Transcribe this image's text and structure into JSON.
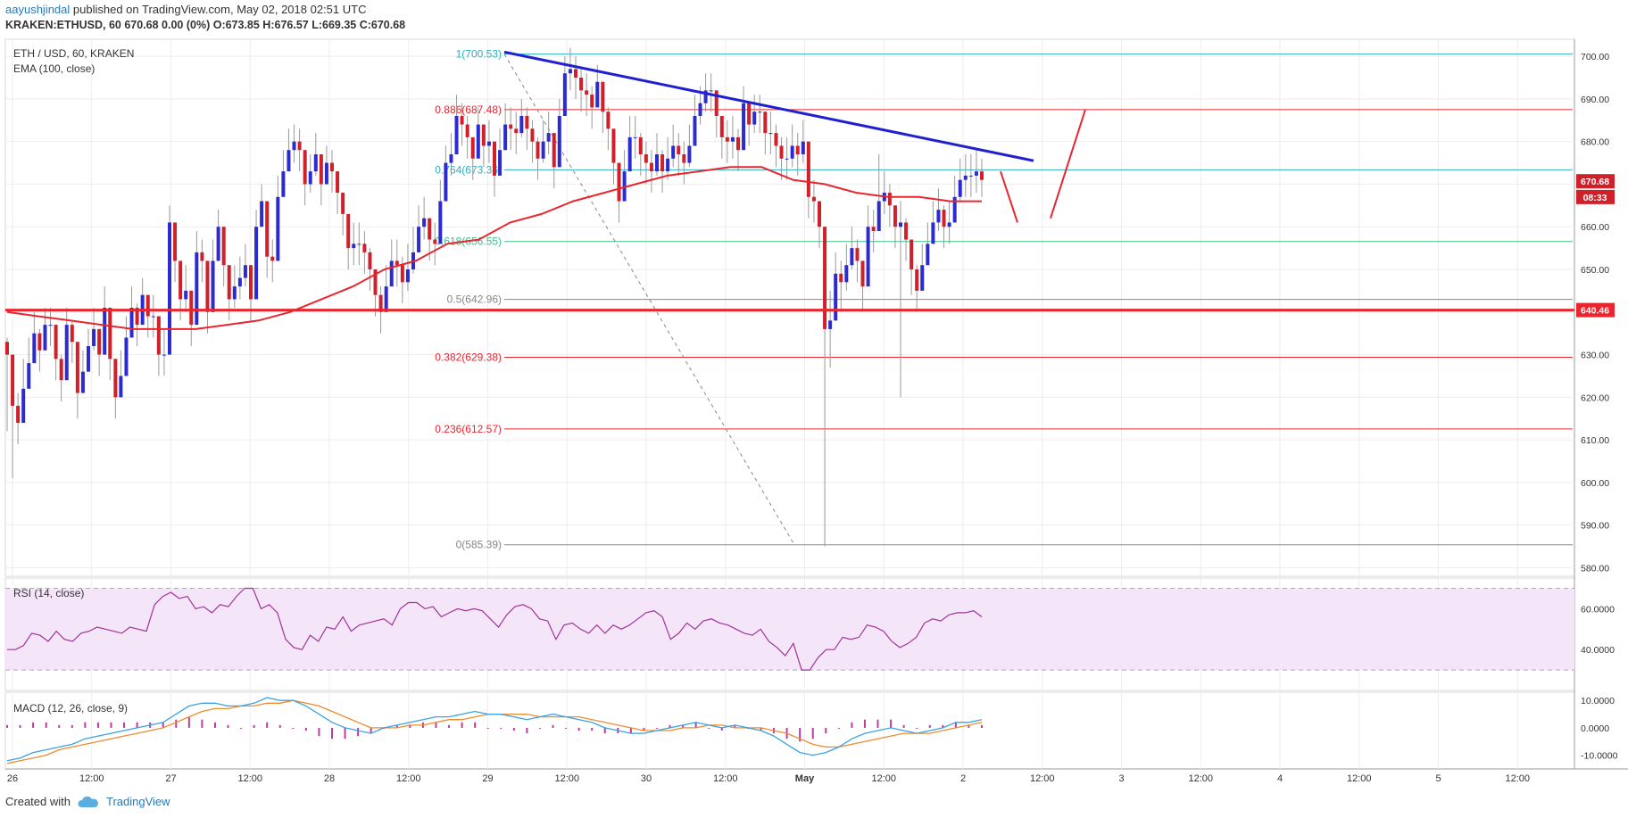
{
  "header": {
    "user": "aayushjindal",
    "published": " published on TradingView.com, May 02, 2018 02:51 UTC",
    "ticker_line": "KRAKEN:ETHUSD, 60  670.68 0.00 (0%) O:673.85 H:676.57 L:669.35 C:670.68"
  },
  "main_pane": {
    "symbol_label": "ETH / USD, 60, KRAKEN",
    "indicator_label": "EMA (100, close)"
  },
  "rsi_pane": {
    "label": "RSI (14, close)"
  },
  "macd_pane": {
    "label": "MACD (12, 26, close, 9)"
  },
  "footer": {
    "created_with": "Created with",
    "brand": "TradingView"
  },
  "colors": {
    "bull": "#2b2bd0",
    "bear": "#d0202a",
    "ema": "#e8262f",
    "trendline": "#2020d0",
    "support": "#e8262f",
    "rsi": "#a0339a",
    "rsi_band": "#f4e6f8",
    "macd": "#3aa3e3",
    "signal": "#f08a2e",
    "hist": "#c03ba0",
    "fib_cyan": "#2bb0c2",
    "fib_green": "#3cc08a",
    "fib_red": "#e8262f",
    "fib_gray": "#888888"
  },
  "chart_data": [
    {
      "type": "candlestick",
      "title": "ETH / USD, 60, KRAKEN",
      "ylim": [
        578,
        704
      ],
      "y_ticks": [
        "700.00",
        "690.00",
        "680.00",
        "670.00",
        "660.00",
        "650.00",
        "640.00",
        "630.00",
        "620.00",
        "610.00",
        "600.00",
        "590.00",
        "580.00"
      ],
      "x_ticks": [
        "26",
        "12:00",
        "27",
        "12:00",
        "28",
        "12:00",
        "29",
        "12:00",
        "30",
        "12:00",
        "May",
        "12:00",
        "2",
        "12:00",
        "3",
        "12:00",
        "4",
        "12:00",
        "5",
        "12:00"
      ],
      "last_price": "670.68",
      "countdown": "08:33",
      "support_level": "640.46",
      "fib_levels": [
        {
          "label": "1(700.53)",
          "value": 700.53,
          "color": "cyan"
        },
        {
          "label": "0.886(687.48)",
          "value": 687.48,
          "color": "red"
        },
        {
          "label": "0.764(673.36)",
          "value": 673.36,
          "color": "cyan"
        },
        {
          "label": "0.618(656.55)",
          "value": 656.55,
          "color": "green"
        },
        {
          "label": "0.5(642.96)",
          "value": 642.96,
          "color": "gray"
        },
        {
          "label": "0.382(629.38)",
          "value": 629.38,
          "color": "red"
        },
        {
          "label": "0.236(612.57)",
          "value": 612.57,
          "color": "red"
        },
        {
          "label": "0(585.39)",
          "value": 585.39,
          "color": "gray"
        }
      ],
      "trendline": {
        "from_price": 701,
        "to_price": 675.5
      },
      "ema_points": [
        640,
        639,
        638,
        637,
        636,
        636,
        636,
        637,
        638,
        640,
        643,
        646,
        650,
        652,
        656,
        657,
        661,
        663,
        666,
        668,
        670,
        672,
        673,
        674,
        674,
        671,
        670,
        668,
        667,
        667,
        666,
        666
      ],
      "closes": [
        630,
        618,
        614,
        622,
        628,
        635,
        631,
        637,
        637,
        629,
        624,
        637,
        633,
        621,
        626,
        632,
        636,
        630,
        641,
        629,
        620,
        625,
        634,
        641,
        637,
        644,
        639,
        639,
        630,
        630,
        661,
        652,
        643,
        645,
        637,
        654,
        652,
        640,
        652,
        660,
        651,
        643,
        646,
        648,
        651,
        643,
        660,
        666,
        653,
        652,
        667,
        673,
        678,
        680,
        678,
        670,
        673,
        677,
        670,
        675,
        673,
        668,
        663,
        655,
        656,
        656,
        654,
        650,
        644,
        640,
        646,
        652,
        651,
        647,
        650,
        654,
        660,
        662,
        657,
        656,
        666,
        675,
        677,
        686,
        684,
        681,
        676,
        684,
        679,
        680,
        672,
        678,
        684,
        683,
        682,
        686,
        683,
        680,
        676,
        680,
        682,
        674,
        686,
        696,
        697,
        695,
        692,
        691,
        688,
        694,
        687,
        683,
        675,
        666,
        673,
        681,
        681,
        677,
        675,
        673,
        677,
        673,
        676,
        679,
        677,
        675,
        679,
        686,
        689,
        692,
        692,
        686,
        681,
        680,
        681,
        678,
        689,
        684,
        687,
        687,
        682,
        682,
        679,
        676,
        676,
        679,
        677,
        680,
        667,
        666,
        660,
        636,
        638,
        649,
        647,
        651,
        655,
        652,
        646,
        660,
        659,
        666,
        668,
        665,
        660,
        661,
        657,
        650,
        645,
        651,
        656,
        661,
        664,
        660,
        661,
        667,
        671,
        672,
        672,
        673,
        671
      ],
      "highs": [
        634,
        622,
        621,
        629,
        634,
        640,
        636,
        641,
        641,
        634,
        630,
        641,
        638,
        628,
        631,
        636,
        641,
        635,
        646,
        635,
        627,
        631,
        639,
        646,
        642,
        648,
        644,
        644,
        636,
        636,
        665,
        657,
        649,
        651,
        643,
        659,
        657,
        646,
        657,
        664,
        656,
        649,
        651,
        653,
        656,
        648,
        664,
        670,
        658,
        657,
        672,
        678,
        683,
        684,
        683,
        675,
        677,
        682,
        675,
        679,
        678,
        673,
        668,
        661,
        661,
        661,
        659,
        655,
        650,
        646,
        651,
        657,
        657,
        653,
        656,
        660,
        665,
        667,
        662,
        661,
        671,
        679,
        682,
        691,
        689,
        686,
        681,
        688,
        684,
        685,
        677,
        683,
        689,
        688,
        687,
        690,
        688,
        685,
        681,
        685,
        687,
        679,
        690,
        700,
        702,
        700,
        697,
        696,
        693,
        698,
        692,
        688,
        681,
        672,
        678,
        686,
        686,
        682,
        680,
        678,
        682,
        678,
        681,
        684,
        682,
        680,
        684,
        691,
        693,
        696,
        696,
        691,
        686,
        685,
        686,
        683,
        693,
        689,
        691,
        691,
        687,
        687,
        684,
        681,
        681,
        684,
        682,
        685,
        672,
        671,
        666,
        641,
        645,
        654,
        652,
        656,
        660,
        657,
        651,
        665,
        664,
        677,
        673,
        670,
        665,
        666,
        662,
        656,
        651,
        656,
        661,
        666,
        669,
        665,
        666,
        672,
        676,
        677,
        677,
        678,
        676
      ],
      "lows": [
        612,
        601,
        609,
        617,
        623,
        630,
        626,
        632,
        632,
        624,
        619,
        632,
        628,
        615,
        621,
        627,
        631,
        625,
        636,
        624,
        615,
        620,
        629,
        636,
        632,
        639,
        634,
        634,
        625,
        625,
        656,
        647,
        638,
        640,
        632,
        649,
        647,
        635,
        647,
        655,
        646,
        638,
        641,
        643,
        646,
        638,
        655,
        661,
        648,
        647,
        662,
        668,
        673,
        675,
        673,
        665,
        668,
        672,
        665,
        670,
        668,
        663,
        658,
        650,
        651,
        651,
        649,
        645,
        639,
        635,
        641,
        647,
        646,
        642,
        645,
        649,
        655,
        657,
        652,
        651,
        661,
        670,
        672,
        681,
        679,
        676,
        671,
        679,
        674,
        675,
        667,
        673,
        679,
        678,
        677,
        681,
        678,
        675,
        671,
        675,
        677,
        669,
        681,
        691,
        692,
        690,
        687,
        686,
        683,
        689,
        682,
        678,
        670,
        661,
        668,
        676,
        676,
        672,
        670,
        668,
        672,
        668,
        671,
        674,
        672,
        670,
        674,
        681,
        684,
        687,
        687,
        681,
        676,
        675,
        676,
        673,
        684,
        679,
        682,
        682,
        677,
        677,
        674,
        671,
        671,
        674,
        672,
        675,
        662,
        661,
        655,
        585,
        627,
        640,
        640,
        645,
        650,
        647,
        640,
        655,
        654,
        660,
        663,
        660,
        655,
        620,
        652,
        644,
        640,
        646,
        651,
        656,
        659,
        655,
        656,
        662,
        666,
        667,
        667,
        668,
        667
      ]
    },
    {
      "type": "line",
      "title": "RSI (14, close)",
      "ylim": [
        20,
        75
      ],
      "y_ticks": [
        "60.0000",
        "40.0000"
      ],
      "bands": [
        30,
        70
      ],
      "values": [
        40,
        40,
        42,
        48,
        47,
        44,
        49,
        45,
        44,
        48,
        49,
        51,
        50,
        49,
        48,
        51,
        50,
        49,
        62,
        66,
        68,
        65,
        66,
        60,
        61,
        58,
        62,
        61,
        66,
        70,
        70,
        60,
        62,
        58,
        45,
        41,
        40,
        47,
        44,
        51,
        50,
        56,
        49,
        52,
        53,
        54,
        55,
        52,
        60,
        63,
        63,
        60,
        61,
        56,
        58,
        60,
        59,
        60,
        59,
        55,
        51,
        57,
        61,
        62,
        60,
        55,
        54,
        45,
        52,
        53,
        50,
        48,
        52,
        48,
        52,
        50,
        52,
        55,
        58,
        59,
        56,
        45,
        48,
        53,
        50,
        54,
        55,
        53,
        52,
        50,
        48,
        47,
        50,
        44,
        41,
        37,
        43,
        30,
        30,
        36,
        40,
        40,
        46,
        45,
        46,
        52,
        51,
        49,
        44,
        41,
        43,
        46,
        53,
        55,
        54,
        57,
        58,
        58,
        59,
        56
      ]
    },
    {
      "type": "line",
      "title": "MACD (12, 26, close, 9)",
      "ylim": [
        -15,
        13
      ],
      "y_ticks": [
        "10.0000",
        "0.0000",
        "-10.0000"
      ],
      "macd": [
        -12,
        -11,
        -9,
        -8,
        -7,
        -6,
        -4,
        -3,
        -2,
        -1,
        0,
        1,
        2,
        5,
        8,
        9,
        9,
        8,
        8,
        9,
        11,
        10,
        10,
        8,
        5,
        2,
        0,
        -1,
        -2,
        0,
        1,
        2,
        3,
        4,
        4,
        5,
        6,
        5,
        5,
        4,
        3,
        4,
        5,
        4,
        3,
        2,
        0,
        -1,
        -2,
        -2,
        -1,
        0,
        1,
        2,
        1,
        0,
        1,
        0,
        -1,
        -3,
        -6,
        -9,
        -10,
        -9,
        -7,
        -4,
        -2,
        -1,
        0,
        -1,
        -2,
        -1,
        0,
        2,
        2,
        3
      ],
      "signal": [
        -13,
        -12,
        -11,
        -10,
        -8,
        -7,
        -6,
        -5,
        -4,
        -3,
        -2,
        -1,
        0,
        2,
        4,
        6,
        7,
        7,
        8,
        8,
        9,
        9,
        10,
        9,
        8,
        6,
        4,
        2,
        0,
        0,
        0,
        1,
        1,
        2,
        3,
        3,
        4,
        5,
        5,
        5,
        5,
        4,
        4,
        4,
        4,
        3,
        2,
        1,
        0,
        -1,
        -1,
        -1,
        0,
        0,
        1,
        1,
        0,
        0,
        0,
        -1,
        -2,
        -4,
        -6,
        -7,
        -7,
        -6,
        -5,
        -4,
        -3,
        -2,
        -2,
        -2,
        -1,
        0,
        1,
        2
      ],
      "histogram": [
        1,
        1,
        2,
        2,
        1,
        1,
        2,
        2,
        2,
        2,
        2,
        2,
        2,
        3,
        4,
        3,
        2,
        1,
        0,
        1,
        2,
        1,
        0,
        -1,
        -3,
        -4,
        -4,
        -3,
        -2,
        0,
        1,
        1,
        2,
        2,
        1,
        2,
        2,
        0,
        0,
        -1,
        -2,
        0,
        1,
        0,
        -1,
        -1,
        -2,
        -2,
        -2,
        -1,
        0,
        1,
        1,
        2,
        0,
        -1,
        1,
        0,
        -1,
        -2,
        -4,
        -5,
        -4,
        -2,
        0,
        2,
        3,
        3,
        3,
        1,
        0,
        1,
        1,
        2,
        1,
        1
      ]
    }
  ]
}
